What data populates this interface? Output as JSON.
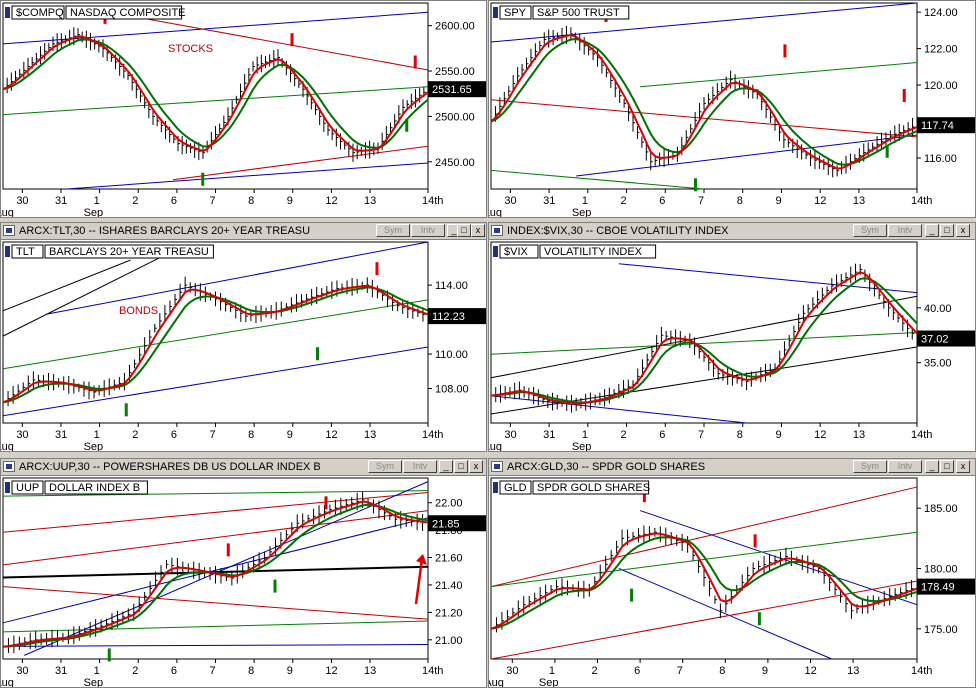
{
  "panes": [
    {
      "id": "compq",
      "has_titlebar": false,
      "title": "",
      "legend": {
        "symbol": "$COMPQ",
        "name": "NASDAQ COMPOSITE"
      },
      "annotation": "STOCKS",
      "last_price": "2531.65",
      "chart_data": {
        "type": "line",
        "ylim": [
          2420,
          2625
        ],
        "yticks": [
          2450,
          2500,
          2550,
          2600
        ],
        "xlabels": [
          "30",
          "31",
          "1",
          "2",
          "6",
          "7",
          "8",
          "9",
          "12",
          "13",
          "14th"
        ],
        "xsub": [
          "Aug",
          "",
          "Sep",
          "",
          "",
          "",
          "",
          "",
          "",
          "",
          ""
        ],
        "series": [
          {
            "values": [
              2530,
              2555,
              2580,
              2590,
              2575,
              2545,
              2500,
              2470,
              2460,
              2500,
              2555,
              2565,
              2530,
              2485,
              2460,
              2465,
              2510,
              2530
            ]
          }
        ]
      }
    },
    {
      "id": "spy",
      "has_titlebar": false,
      "title": "",
      "legend": {
        "symbol": "SPY",
        "name": "S&P 500 TRUST"
      },
      "annotation": "",
      "last_price": "117.74",
      "chart_data": {
        "type": "line",
        "ylim": [
          114.3,
          124.5
        ],
        "yticks": [
          116,
          118,
          120,
          122,
          124
        ],
        "xlabels": [
          "30",
          "31",
          "1",
          "2",
          "6",
          "7",
          "8",
          "9",
          "12",
          "13",
          "14th"
        ],
        "xsub": [
          "Aug",
          "",
          "Sep",
          "",
          "",
          "",
          "",
          "",
          "",
          "",
          ""
        ],
        "series": [
          {
            "values": [
              118,
              120.5,
              122.5,
              122.8,
              121.5,
              119,
              115.8,
              116.2,
              119,
              120.3,
              119.5,
              117,
              116,
              115.3,
              116.3,
              117.2,
              117.8
            ]
          }
        ]
      }
    },
    {
      "id": "tlt",
      "has_titlebar": true,
      "title": "ARCX:TLT,30 -- ISHARES BARCLAYS 20+ YEAR TREASU",
      "legend": {
        "symbol": "TLT",
        "name": "BARCLAYS 20+ YEAR TREASU"
      },
      "annotation": "BONDS",
      "last_price": "112.23",
      "chart_data": {
        "type": "line",
        "ylim": [
          106,
          116.5
        ],
        "yticks": [
          108,
          110,
          112,
          114
        ],
        "xlabels": [
          "30",
          "31",
          "1",
          "2",
          "6",
          "7",
          "8",
          "9",
          "12",
          "13",
          "14th"
        ],
        "xsub": [
          "Aug",
          "",
          "Sep",
          "",
          "",
          "",
          "",
          "",
          "",
          "",
          ""
        ],
        "series": [
          {
            "values": [
              107.2,
              108.5,
              108.3,
              107.8,
              108.4,
              111.5,
              114,
              113.2,
              112.2,
              112.5,
              113.2,
              113.8,
              114,
              112.8,
              112.2
            ]
          }
        ]
      }
    },
    {
      "id": "vix",
      "has_titlebar": true,
      "title": "INDEX:$VIX,30 -- CBOE VOLATILITY INDEX",
      "legend": {
        "symbol": "$VIX",
        "name": "VOLATILITY INDEX"
      },
      "annotation": "",
      "last_price": "37.02",
      "chart_data": {
        "type": "line",
        "ylim": [
          29.5,
          46
        ],
        "yticks": [
          35,
          40
        ],
        "xlabels": [
          "30",
          "31",
          "1",
          "2",
          "6",
          "7",
          "8",
          "9",
          "12",
          "13",
          "14th"
        ],
        "xsub": [
          "Aug",
          "",
          "Sep",
          "",
          "",
          "",
          "",
          "",
          "",
          "",
          ""
        ],
        "series": [
          {
            "values": [
              32,
              32.5,
              31.5,
              31.2,
              31.8,
              33,
              37.5,
              37,
              34,
              33.3,
              34.5,
              39.5,
              42,
              43.5,
              40,
              37.2
            ]
          }
        ]
      }
    },
    {
      "id": "uup",
      "has_titlebar": true,
      "title": "ARCX:UUP,30 -- POWERSHARES DB US DOLLAR INDEX B",
      "legend": {
        "symbol": "UUP",
        "name": "DOLLAR INDEX B"
      },
      "annotation": "",
      "last_price": "21.85",
      "chart_data": {
        "type": "line",
        "ylim": [
          20.86,
          22.18
        ],
        "yticks": [
          21.0,
          21.2,
          21.4,
          21.6,
          21.8,
          22.0
        ],
        "xlabels": [
          "30",
          "31",
          "1",
          "2",
          "6",
          "7",
          "8",
          "9",
          "12",
          "13",
          "14th"
        ],
        "xsub": [
          "Aug",
          "",
          "Sep",
          "",
          "",
          "",
          "",
          "",
          "",
          "",
          ""
        ],
        "series": [
          {
            "values": [
              20.95,
              21,
              21.02,
              21.1,
              21.2,
              21.55,
              21.5,
              21.45,
              21.6,
              21.85,
              21.95,
              22.02,
              21.88,
              21.85
            ]
          }
        ]
      }
    },
    {
      "id": "gld",
      "has_titlebar": true,
      "title": "ARCX:GLD,30 -- SPDR GOLD SHARES",
      "legend": {
        "symbol": "GLD",
        "name": "SPDR GOLD SHARES"
      },
      "annotation": "",
      "last_price": "178.49",
      "chart_data": {
        "type": "line",
        "ylim": [
          172.5,
          187.5
        ],
        "yticks": [
          175,
          180,
          185
        ],
        "xlabels": [
          "30",
          "1",
          "2",
          "6",
          "7",
          "8",
          "9",
          "12",
          "13",
          "14th"
        ],
        "xsub": [
          "Aug",
          "Sep",
          "",
          "",
          "",
          "",
          "",
          "",
          "",
          ""
        ],
        "series": [
          {
            "values": [
              175,
              177,
              178.5,
              178.2,
              182.5,
              183,
              182,
              176.5,
              180,
              181,
              180,
              176.5,
              177.5,
              178.5
            ]
          }
        ]
      }
    }
  ],
  "buttons": {
    "sym": "Sym",
    "intv": "Intv",
    "min": "_",
    "max": "□",
    "close": "x"
  },
  "colors": {
    "fast": "#d80000",
    "slow": "#007000",
    "bars": "#000000",
    "trend_blue": "#0000b0",
    "trend_red": "#c00000",
    "trend_green": "#008000",
    "label_red": "#c00000"
  }
}
